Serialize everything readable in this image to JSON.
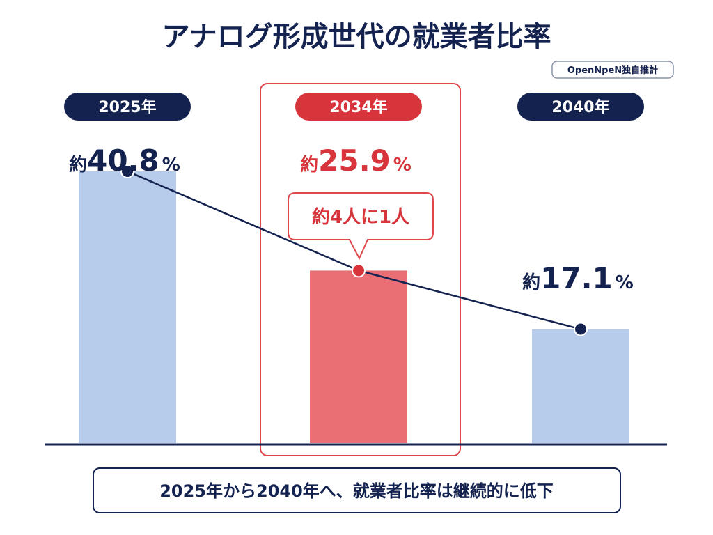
{
  "chart_data": {
    "type": "bar",
    "title": "アナログ形成世代の就業者比率",
    "source": "OpenNpeN独自推計",
    "categories": [
      "2025年",
      "2034年",
      "2040年"
    ],
    "values": [
      40.8,
      25.9,
      17.1
    ],
    "value_labels": [
      {
        "prefix": "約",
        "number": "40.8",
        "unit": "%"
      },
      {
        "prefix": "約",
        "number": "25.9",
        "unit": "%"
      },
      {
        "prefix": "約",
        "number": "17.1",
        "unit": "%"
      }
    ],
    "highlight_index": 1,
    "callout": "約4人に1人",
    "summary": "2025年から2040年へ、就業者比率は継続的に低下",
    "ylim": [
      0,
      50
    ],
    "grid": false,
    "colors": {
      "navy": "#14224f",
      "bar": "#b7cbeb",
      "highlight": "#e96f75",
      "red": "#d8343b"
    }
  }
}
